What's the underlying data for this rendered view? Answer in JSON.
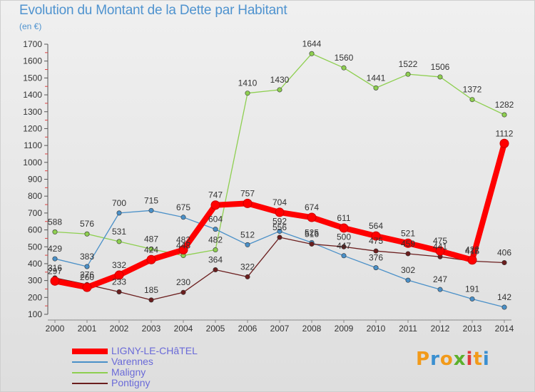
{
  "title": "Evolution du Montant de la Dette par Habitant",
  "subtitle": "(en €)",
  "logo_text": "Proxiti",
  "chart_data": {
    "type": "line",
    "title": "Evolution du Montant de la Dette par Habitant",
    "ylabel": "(en €)",
    "x": [
      2000,
      2001,
      2002,
      2003,
      2004,
      2005,
      2006,
      2007,
      2008,
      2009,
      2010,
      2011,
      2012,
      2013,
      2014
    ],
    "ylim": [
      100,
      1700
    ],
    "yticks": [
      100,
      200,
      300,
      400,
      500,
      600,
      700,
      800,
      900,
      1000,
      1100,
      1200,
      1300,
      1400,
      1500,
      1600,
      1700
    ],
    "legend_position": "bottom-left",
    "series": [
      {
        "name": "LIGNY-LE-CHâTEL",
        "color": "#ff0000",
        "values": [
          297,
          260,
          332,
          424,
          482,
          747,
          757,
          704,
          674,
          611,
          564,
          521,
          475,
          422,
          1112
        ]
      },
      {
        "name": "Varennes",
        "color": "#4a90c8",
        "values": [
          429,
          383,
          700,
          715,
          675,
          604,
          512,
          592,
          525,
          447,
          376,
          302,
          247,
          191,
          142
        ]
      },
      {
        "name": "Maligny",
        "color": "#8ecf50",
        "values": [
          588,
          576,
          531,
          487,
          448,
          482,
          1410,
          1430,
          1644,
          1560,
          1441,
          1522,
          1506,
          1372,
          1282
        ]
      },
      {
        "name": "Pontigny",
        "color": "#6b1e1e",
        "values": [
          316,
          276,
          233,
          185,
          230,
          364,
          322,
          556,
          516,
          500,
          475,
          459,
          441,
          415,
          406
        ]
      }
    ]
  }
}
